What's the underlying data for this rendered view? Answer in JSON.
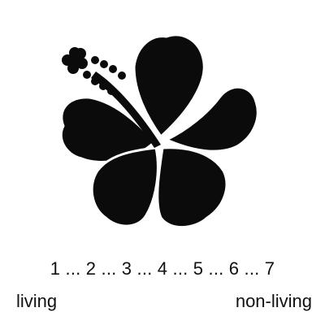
{
  "scale": {
    "line": "1 ... 2 ... 3 ... 4 ... 5 ... 6 ... 7",
    "left_anchor": "living",
    "right_anchor": "non-living"
  },
  "image": {
    "icon": "hibiscus-flower-icon",
    "color": "#0b0b0b"
  }
}
